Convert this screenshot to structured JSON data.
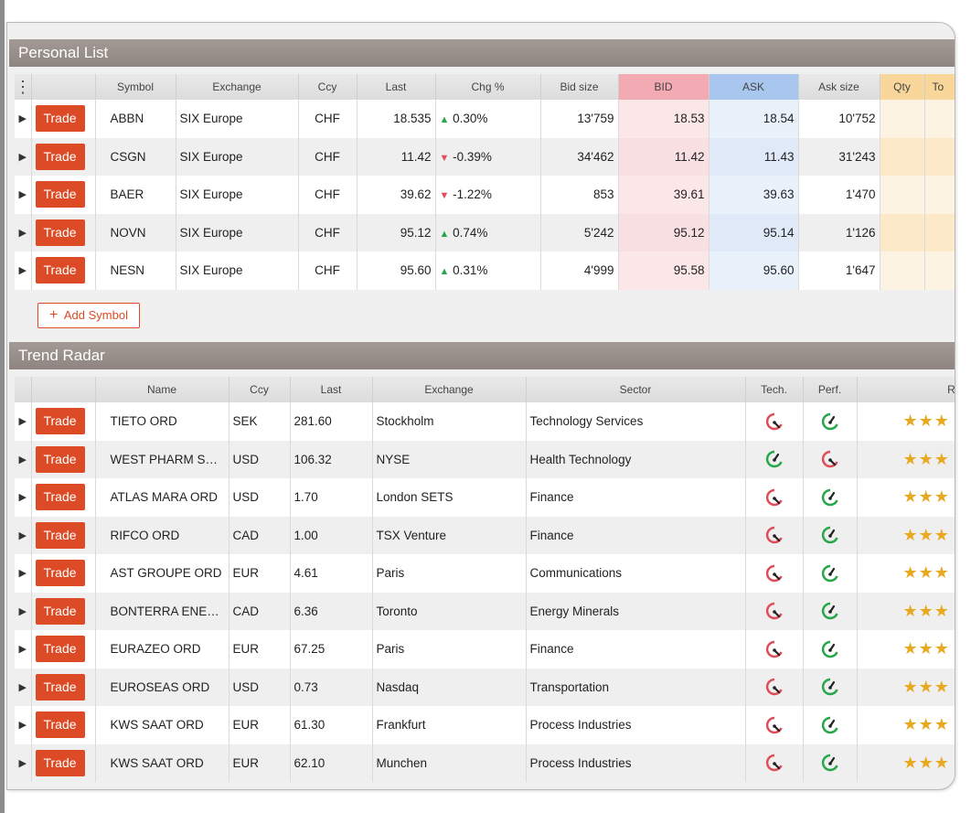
{
  "personal": {
    "title": "Personal List",
    "headers": {
      "symbol": "Symbol",
      "exchange": "Exchange",
      "ccy": "Ccy",
      "last": "Last",
      "chg": "Chg %",
      "bidsize": "Bid size",
      "bid": "BID",
      "ask": "ASK",
      "asksize": "Ask size",
      "qty": "Qty",
      "to": "To"
    },
    "trade_label": "Trade",
    "add_symbol": "Add Symbol",
    "rows": [
      {
        "symbol": "ABBN",
        "exchange": "SIX Europe",
        "ccy": "CHF",
        "last": "18.535",
        "chg_dir": "▲",
        "chg": "0.30%",
        "bidsize": "13'759",
        "bid": "18.53",
        "ask": "18.54",
        "asksize": "10'752"
      },
      {
        "symbol": "CSGN",
        "exchange": "SIX Europe",
        "ccy": "CHF",
        "last": "11.42",
        "chg_dir": "▼",
        "chg": "-0.39%",
        "bidsize": "34'462",
        "bid": "11.42",
        "ask": "11.43",
        "asksize": "31'243"
      },
      {
        "symbol": "BAER",
        "exchange": "SIX Europe",
        "ccy": "CHF",
        "last": "39.62",
        "chg_dir": "▼",
        "chg": "-1.22%",
        "bidsize": "853",
        "bid": "39.61",
        "ask": "39.63",
        "asksize": "1'470"
      },
      {
        "symbol": "NOVN",
        "exchange": "SIX Europe",
        "ccy": "CHF",
        "last": "95.12",
        "chg_dir": "▲",
        "chg": "0.74%",
        "bidsize": "5'242",
        "bid": "95.12",
        "ask": "95.14",
        "asksize": "1'126"
      },
      {
        "symbol": "NESN",
        "exchange": "SIX Europe",
        "ccy": "CHF",
        "last": "95.60",
        "chg_dir": "▲",
        "chg": "0.31%",
        "bidsize": "4'999",
        "bid": "95.58",
        "ask": "95.60",
        "asksize": "1'647"
      }
    ]
  },
  "trend": {
    "title": "Trend Radar",
    "headers": {
      "name": "Name",
      "ccy": "Ccy",
      "last": "Last",
      "exchange": "Exchange",
      "sector": "Sector",
      "tech": "Tech.",
      "perf": "Perf.",
      "rating": "Ra"
    },
    "rows": [
      {
        "name": "TIETO ORD",
        "ccy": "SEK",
        "last": "281.60",
        "exchange": "Stockholm",
        "sector": "Technology Services",
        "tech": "down",
        "perf": "up"
      },
      {
        "name": "WEST PHARM SVC …",
        "ccy": "USD",
        "last": "106.32",
        "exchange": "NYSE",
        "sector": "Health Technology",
        "tech": "up",
        "perf": "down"
      },
      {
        "name": "ATLAS MARA ORD",
        "ccy": "USD",
        "last": "1.70",
        "exchange": "London SETS",
        "sector": "Finance",
        "tech": "down",
        "perf": "up"
      },
      {
        "name": "RIFCO ORD",
        "ccy": "CAD",
        "last": "1.00",
        "exchange": "TSX Venture",
        "sector": "Finance",
        "tech": "down",
        "perf": "up"
      },
      {
        "name": "AST GROUPE ORD",
        "ccy": "EUR",
        "last": "4.61",
        "exchange": "Paris",
        "sector": "Communications",
        "tech": "down",
        "perf": "up"
      },
      {
        "name": "BONTERRA ENERG…",
        "ccy": "CAD",
        "last": "6.36",
        "exchange": "Toronto",
        "sector": "Energy Minerals",
        "tech": "down",
        "perf": "up"
      },
      {
        "name": "EURAZEO ORD",
        "ccy": "EUR",
        "last": "67.25",
        "exchange": "Paris",
        "sector": "Finance",
        "tech": "down",
        "perf": "up"
      },
      {
        "name": "EUROSEAS ORD",
        "ccy": "USD",
        "last": "0.73",
        "exchange": "Nasdaq",
        "sector": "Transportation",
        "tech": "down",
        "perf": "up"
      },
      {
        "name": "KWS SAAT ORD",
        "ccy": "EUR",
        "last": "61.30",
        "exchange": "Frankfurt",
        "sector": "Process Industries",
        "tech": "down",
        "perf": "up"
      },
      {
        "name": "KWS SAAT ORD",
        "ccy": "EUR",
        "last": "62.10",
        "exchange": "Munchen",
        "sector": "Process Industries",
        "tech": "down",
        "perf": "up"
      }
    ]
  },
  "colors": {
    "trade": "#dc4b26",
    "up": "#26a84a",
    "down": "#e04d59",
    "bid": "#f4aab3",
    "ask": "#a9c6ee",
    "qty": "#f9d69a"
  }
}
